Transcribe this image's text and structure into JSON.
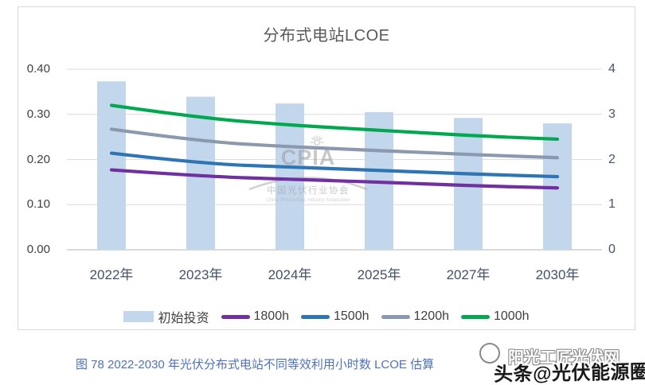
{
  "chart_data": {
    "type": "bar",
    "subtype": "bar-line-combo",
    "title": "分布式电站LCOE",
    "categories": [
      "2022年",
      "2023年",
      "2024年",
      "2025年",
      "2027年",
      "2030年"
    ],
    "bar_series": {
      "name": "初始投资",
      "axis": "right",
      "values": [
        3.73,
        3.39,
        3.24,
        3.05,
        2.92,
        2.8
      ],
      "color": "#c2d6ec"
    },
    "line_series": [
      {
        "name": "1800h",
        "axis": "left",
        "values": [
          0.177,
          0.163,
          0.156,
          0.15,
          0.142,
          0.137
        ],
        "color": "#7030a0"
      },
      {
        "name": "1500h",
        "axis": "left",
        "values": [
          0.214,
          0.191,
          0.183,
          0.176,
          0.168,
          0.162
        ],
        "color": "#2e75b6"
      },
      {
        "name": "1200h",
        "axis": "left",
        "values": [
          0.267,
          0.24,
          0.228,
          0.22,
          0.211,
          0.204
        ],
        "color": "#8a99ad"
      },
      {
        "name": "1000h",
        "axis": "left",
        "values": [
          0.32,
          0.292,
          0.276,
          0.265,
          0.253,
          0.245
        ],
        "color": "#00a84f"
      }
    ],
    "left_axis": {
      "min": 0,
      "max": 0.4,
      "ticks": [
        "0.40",
        "0.30",
        "0.20",
        "0.10",
        "0.00"
      ]
    },
    "right_axis": {
      "min": 0,
      "max": 4,
      "ticks": [
        "4",
        "3",
        "2",
        "1",
        "0"
      ]
    },
    "grid": true,
    "legend_position": "bottom"
  },
  "watermark_cpia": {
    "acronym": "CPIA",
    "cn": "中国光伏行业协会",
    "en": "China Photovoltaic Industry Association",
    "icon": "sunburst-icon"
  },
  "caption": {
    "text": "图 78  2022-2030 年光伏分布式电站不同等效利用小时数 LCOE 估算"
  },
  "corner_watermark": {
    "line1": "阳光工匠光伏网",
    "line2": "头条@光伏能源圈",
    "icon": "sun-circle-icon"
  },
  "colors": {
    "grid": "#dcdcdc",
    "axis_line": "#c3c3c3",
    "title_text": "#595959",
    "tick_text": "#404040",
    "caption_text": "#4e72b8"
  }
}
